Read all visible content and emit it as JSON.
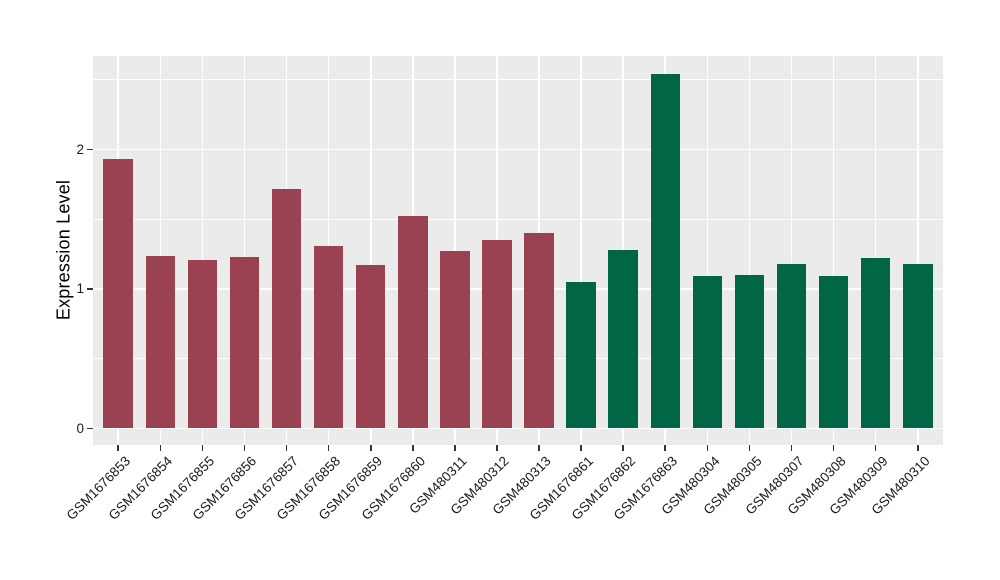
{
  "chart_data": {
    "type": "bar",
    "title": "",
    "xlabel": "",
    "ylabel": "Expression Level",
    "categories": [
      "GSM1676853",
      "GSM1676854",
      "GSM1676855",
      "GSM1676856",
      "GSM1676857",
      "GSM1676858",
      "GSM1676859",
      "GSM1676860",
      "GSM480311",
      "GSM480312",
      "GSM480313",
      "GSM1676861",
      "GSM1676862",
      "GSM1676863",
      "GSM480304",
      "GSM480305",
      "GSM480307",
      "GSM480308",
      "GSM480309",
      "GSM480310"
    ],
    "values": [
      1.93,
      1.24,
      1.21,
      1.23,
      1.72,
      1.31,
      1.17,
      1.52,
      1.27,
      1.35,
      1.4,
      1.05,
      1.28,
      2.54,
      1.09,
      1.1,
      1.18,
      1.09,
      1.22,
      1.18
    ],
    "groups": [
      0,
      0,
      0,
      0,
      0,
      0,
      0,
      0,
      0,
      0,
      0,
      1,
      1,
      1,
      1,
      1,
      1,
      1,
      1,
      1
    ],
    "group_colors": [
      "#9B4252",
      "#006646"
    ],
    "y_ticks": [
      0,
      1,
      2
    ],
    "y_minor_gridlines": [
      0.5,
      1.5,
      2.5
    ],
    "ylim": [
      -0.12,
      2.67
    ],
    "grid": true,
    "legend": "none",
    "x_label_rotation_deg": 45,
    "plot_background": "#EBEBEB",
    "gridline_color": "#FFFFFF",
    "axis_text_color": "#1A1A1A",
    "tick_mark_color": "#333333"
  }
}
